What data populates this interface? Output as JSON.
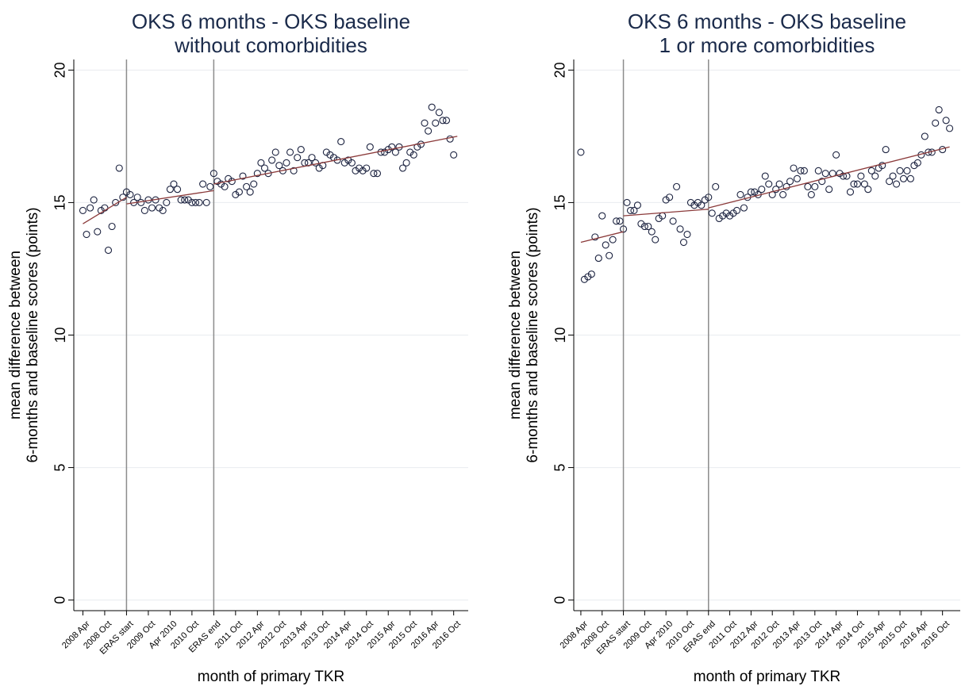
{
  "chart_data": [
    {
      "type": "scatter",
      "title": [
        "OKS 6 months - OKS baseline",
        "without comorbidities"
      ],
      "y_label": [
        "mean difference between",
        "6-months and baseline scores (points)"
      ],
      "x_label": "month of primary TKR",
      "xlim": [
        -2.5,
        106
      ],
      "ylim": [
        -0.4,
        20.4
      ],
      "yticks": [
        0,
        5,
        10,
        15,
        20
      ],
      "xticks": [
        {
          "value": 0,
          "label": "2008 Apr"
        },
        {
          "value": 6,
          "label": "2008 Oct"
        },
        {
          "value": 12,
          "label": "ERAS start"
        },
        {
          "value": 18,
          "label": "2009 Oct"
        },
        {
          "value": 24,
          "label": "Apr 2010"
        },
        {
          "value": 30,
          "label": "2010 Oct"
        },
        {
          "value": 36,
          "label": "ERAS end"
        },
        {
          "value": 42,
          "label": "2011 Oct"
        },
        {
          "value": 48,
          "label": "2012 Apr"
        },
        {
          "value": 54,
          "label": "2012 Oct"
        },
        {
          "value": 60,
          "label": "2013 Apr"
        },
        {
          "value": 66,
          "label": "2013 Oct"
        },
        {
          "value": 72,
          "label": "2014 Apr"
        },
        {
          "value": 78,
          "label": "2014 Oct"
        },
        {
          "value": 84,
          "label": "2015 Apr"
        },
        {
          "value": 90,
          "label": "2015 Oct"
        },
        {
          "value": 96,
          "label": "2016 Apr"
        },
        {
          "value": 102,
          "label": "2016 Oct"
        }
      ],
      "reference_lines": [
        12,
        36
      ],
      "grid": true,
      "series": [
        {
          "mode": "markers",
          "color": "#1c2340",
          "x": [
            0,
            1,
            2,
            3,
            4,
            5,
            6,
            7,
            8,
            9,
            10,
            11,
            12,
            13,
            14,
            15,
            16,
            17,
            18,
            19,
            20,
            21,
            22,
            23,
            24,
            25,
            26,
            27,
            28,
            29,
            30,
            31,
            32,
            33,
            34,
            35,
            36,
            37,
            38,
            39,
            40,
            41,
            42,
            43,
            44,
            45,
            46,
            47,
            48,
            49,
            50,
            51,
            52,
            53,
            54,
            55,
            56,
            57,
            58,
            59,
            60,
            61,
            62,
            63,
            64,
            65,
            66,
            67,
            68,
            69,
            70,
            71,
            72,
            73,
            74,
            75,
            76,
            77,
            78,
            79,
            80,
            81,
            82,
            83,
            84,
            85,
            86,
            87,
            88,
            89,
            90,
            91,
            92,
            93,
            94,
            95,
            96,
            97,
            98,
            99,
            100,
            101,
            102
          ],
          "values": [
            14.7,
            13.8,
            14.8,
            15.1,
            13.9,
            14.7,
            14.8,
            13.2,
            14.1,
            15.0,
            16.3,
            15.2,
            15.4,
            15.3,
            15.0,
            15.2,
            15.0,
            14.7,
            15.1,
            14.8,
            15.1,
            14.8,
            14.7,
            15.0,
            15.5,
            15.7,
            15.5,
            15.1,
            15.1,
            15.1,
            15.0,
            15.0,
            15.0,
            15.7,
            15.0,
            15.6,
            16.1,
            15.8,
            15.7,
            15.6,
            15.9,
            15.8,
            15.3,
            15.4,
            16.0,
            15.6,
            15.4,
            15.7,
            16.1,
            16.5,
            16.3,
            16.1,
            16.6,
            16.9,
            16.4,
            16.2,
            16.5,
            16.9,
            16.2,
            16.7,
            17.0,
            16.5,
            16.5,
            16.7,
            16.5,
            16.3,
            16.4,
            16.9,
            16.8,
            16.7,
            16.6,
            17.3,
            16.5,
            16.6,
            16.5,
            16.2,
            16.3,
            16.2,
            16.3,
            17.1,
            16.1,
            16.1,
            16.9,
            16.9,
            17.0,
            17.1,
            16.9,
            17.1,
            16.3,
            16.5,
            16.9,
            16.8,
            17.1,
            17.2,
            18.0,
            17.7,
            18.6,
            18.0,
            18.4,
            18.1,
            18.1,
            17.4,
            16.8
          ]
        },
        {
          "mode": "lines",
          "color": "#8b3a3a",
          "x": [
            0,
            12,
            12,
            12,
            36,
            36,
            36,
            103
          ],
          "values": [
            14.2,
            15.2,
            null,
            14.95,
            15.45,
            null,
            15.7,
            17.5
          ]
        }
      ]
    },
    {
      "type": "scatter",
      "title": [
        "OKS 6 months - OKS baseline",
        "1 or more comorbidities"
      ],
      "y_label": [
        "mean difference between",
        "6-months and baseline scores (points)"
      ],
      "x_label": "month of primary TKR",
      "xlim": [
        -2,
        107
      ],
      "ylim": [
        -0.4,
        20.4
      ],
      "yticks": [
        0,
        5,
        10,
        15,
        20
      ],
      "xticks": [
        {
          "value": 0,
          "label": "2008 Apr"
        },
        {
          "value": 6,
          "label": "2008 Oct"
        },
        {
          "value": 12,
          "label": "ERAS start"
        },
        {
          "value": 18,
          "label": "2009 Oct"
        },
        {
          "value": 24,
          "label": "Apr 2010"
        },
        {
          "value": 30,
          "label": "2010 Oct"
        },
        {
          "value": 36,
          "label": "ERAS end"
        },
        {
          "value": 42,
          "label": "2011 Oct"
        },
        {
          "value": 48,
          "label": "2012 Apr"
        },
        {
          "value": 54,
          "label": "2012 Oct"
        },
        {
          "value": 60,
          "label": "2013 Apr"
        },
        {
          "value": 66,
          "label": "2013 Oct"
        },
        {
          "value": 72,
          "label": "2014 Apr"
        },
        {
          "value": 78,
          "label": "2014 Oct"
        },
        {
          "value": 84,
          "label": "2015 Apr"
        },
        {
          "value": 90,
          "label": "2015 Oct"
        },
        {
          "value": 96,
          "label": "2016 Apr"
        },
        {
          "value": 102,
          "label": "2016 Oct"
        }
      ],
      "reference_lines": [
        12,
        36
      ],
      "grid": true,
      "series": [
        {
          "mode": "markers",
          "color": "#1c2340",
          "x": [
            0,
            1,
            2,
            3,
            4,
            5,
            6,
            7,
            8,
            9,
            10,
            11,
            12,
            13,
            14,
            15,
            16,
            17,
            18,
            19,
            20,
            21,
            22,
            23,
            24,
            25,
            26,
            27,
            28,
            29,
            30,
            31,
            32,
            33,
            34,
            35,
            36,
            37,
            38,
            39,
            40,
            41,
            42,
            43,
            44,
            45,
            46,
            47,
            48,
            49,
            50,
            51,
            52,
            53,
            54,
            55,
            56,
            57,
            58,
            59,
            60,
            61,
            62,
            63,
            64,
            65,
            66,
            67,
            68,
            69,
            70,
            71,
            72,
            73,
            74,
            75,
            76,
            77,
            78,
            79,
            80,
            81,
            82,
            83,
            84,
            85,
            86,
            87,
            88,
            89,
            90,
            91,
            92,
            93,
            94,
            95,
            96,
            97,
            98,
            99,
            100,
            101,
            102,
            103,
            104
          ],
          "values": [
            16.9,
            12.1,
            12.2,
            12.3,
            13.7,
            12.9,
            14.5,
            13.4,
            13.0,
            13.6,
            14.3,
            14.3,
            14.0,
            15.0,
            14.7,
            14.7,
            14.9,
            14.2,
            14.1,
            14.1,
            13.9,
            13.6,
            14.4,
            14.5,
            15.1,
            15.2,
            14.3,
            15.6,
            14.0,
            13.5,
            13.8,
            15.0,
            14.9,
            15.0,
            14.9,
            15.1,
            15.2,
            14.6,
            15.6,
            14.4,
            14.5,
            14.6,
            14.5,
            14.6,
            14.7,
            15.3,
            14.8,
            15.2,
            15.4,
            15.4,
            15.3,
            15.5,
            16.0,
            15.7,
            15.3,
            15.5,
            15.7,
            15.3,
            15.6,
            15.8,
            16.3,
            15.9,
            16.2,
            16.2,
            15.6,
            15.3,
            15.6,
            16.2,
            15.8,
            16.1,
            15.5,
            16.1,
            16.8,
            16.1,
            16.0,
            16.0,
            15.4,
            15.7,
            15.7,
            16.0,
            15.7,
            15.5,
            16.2,
            16.0,
            16.3,
            16.4,
            17.0,
            15.8,
            16.0,
            15.7,
            16.2,
            15.9,
            16.2,
            15.9,
            16.4,
            16.5,
            16.8,
            17.5,
            16.9,
            16.9,
            18.0,
            18.5,
            17.0,
            18.1,
            17.8
          ]
        },
        {
          "mode": "lines",
          "color": "#8b3a3a",
          "x": [
            0,
            12,
            12,
            12,
            36,
            36,
            36,
            104
          ],
          "values": [
            13.5,
            13.9,
            null,
            14.5,
            14.75,
            null,
            14.8,
            17.1
          ]
        }
      ]
    }
  ]
}
